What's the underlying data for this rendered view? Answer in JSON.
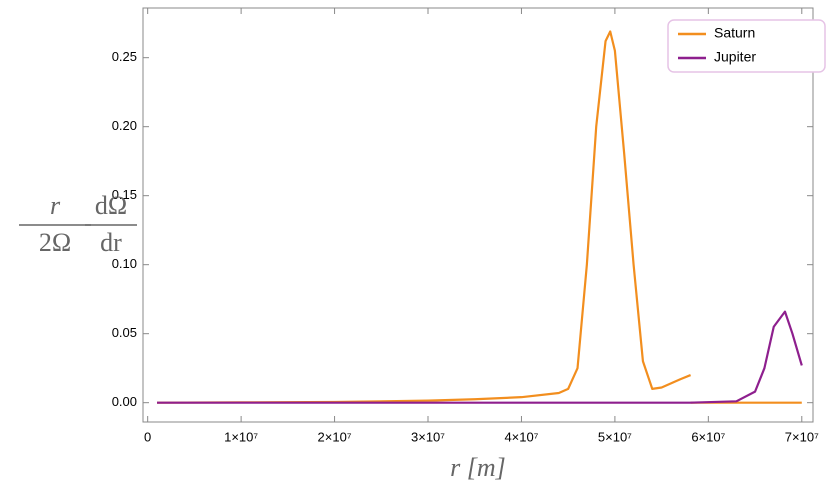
{
  "chart_data": {
    "type": "line",
    "ylabel": [
      "r",
      "2Ω",
      "dΩ",
      "dr"
    ],
    "xlabel": "r [m]",
    "xlim": [
      -500000,
      71200000
    ],
    "ylim": [
      -0.014,
      0.286
    ],
    "xticks": [
      0,
      {
        "value": 10000000,
        "label": "1×10⁷"
      },
      {
        "value": 20000000,
        "label": "2×10⁷"
      },
      {
        "value": 30000000,
        "label": "3×10⁷"
      },
      {
        "value": 40000000,
        "label": "4×10⁷"
      },
      {
        "value": 50000000,
        "label": "5×10⁷"
      },
      {
        "value": 60000000,
        "label": "6×10⁷"
      },
      {
        "value": 70000000,
        "label": "7×10⁷"
      }
    ],
    "yticks": [
      {
        "value": 0,
        "label": "0.00"
      },
      {
        "value": 0.05,
        "label": "0.05"
      },
      {
        "value": 0.1,
        "label": "0.10"
      },
      {
        "value": 0.15,
        "label": "0.15"
      },
      {
        "value": 0.2,
        "label": "0.20"
      },
      {
        "value": 0.25,
        "label": "0.25"
      }
    ],
    "legend": "top-right",
    "series": [
      {
        "name": "Saturn",
        "color": "#f28e1e",
        "x": [
          1000000,
          10000000,
          20000000,
          30000000,
          35000000,
          40000000,
          44000000,
          45000000,
          46000000,
          47000000,
          48000000,
          49000000,
          49500000,
          50000000,
          51000000,
          52000000,
          53000000,
          54000000,
          55000000,
          56000000,
          57000000,
          58100000,
          58100000,
          58100000,
          70000000
        ],
        "values": [
          0,
          0.0002,
          0.0005,
          0.0015,
          0.0025,
          0.004,
          0.007,
          0.01,
          0.025,
          0.1,
          0.2,
          0.262,
          0.269,
          0.255,
          0.18,
          0.1,
          0.03,
          0.01,
          0.011,
          0.014,
          0.017,
          0.02,
          null,
          0,
          0
        ]
      },
      {
        "name": "Jupiter",
        "color": "#8e1f8e",
        "x": [
          1000000,
          30000000,
          58000000,
          63000000,
          65000000,
          66000000,
          67000000,
          68200000,
          69000000,
          70000000
        ],
        "values": [
          0,
          0,
          0,
          0.001,
          0.008,
          0.025,
          0.055,
          0.066,
          0.05,
          0.027
        ]
      }
    ]
  }
}
